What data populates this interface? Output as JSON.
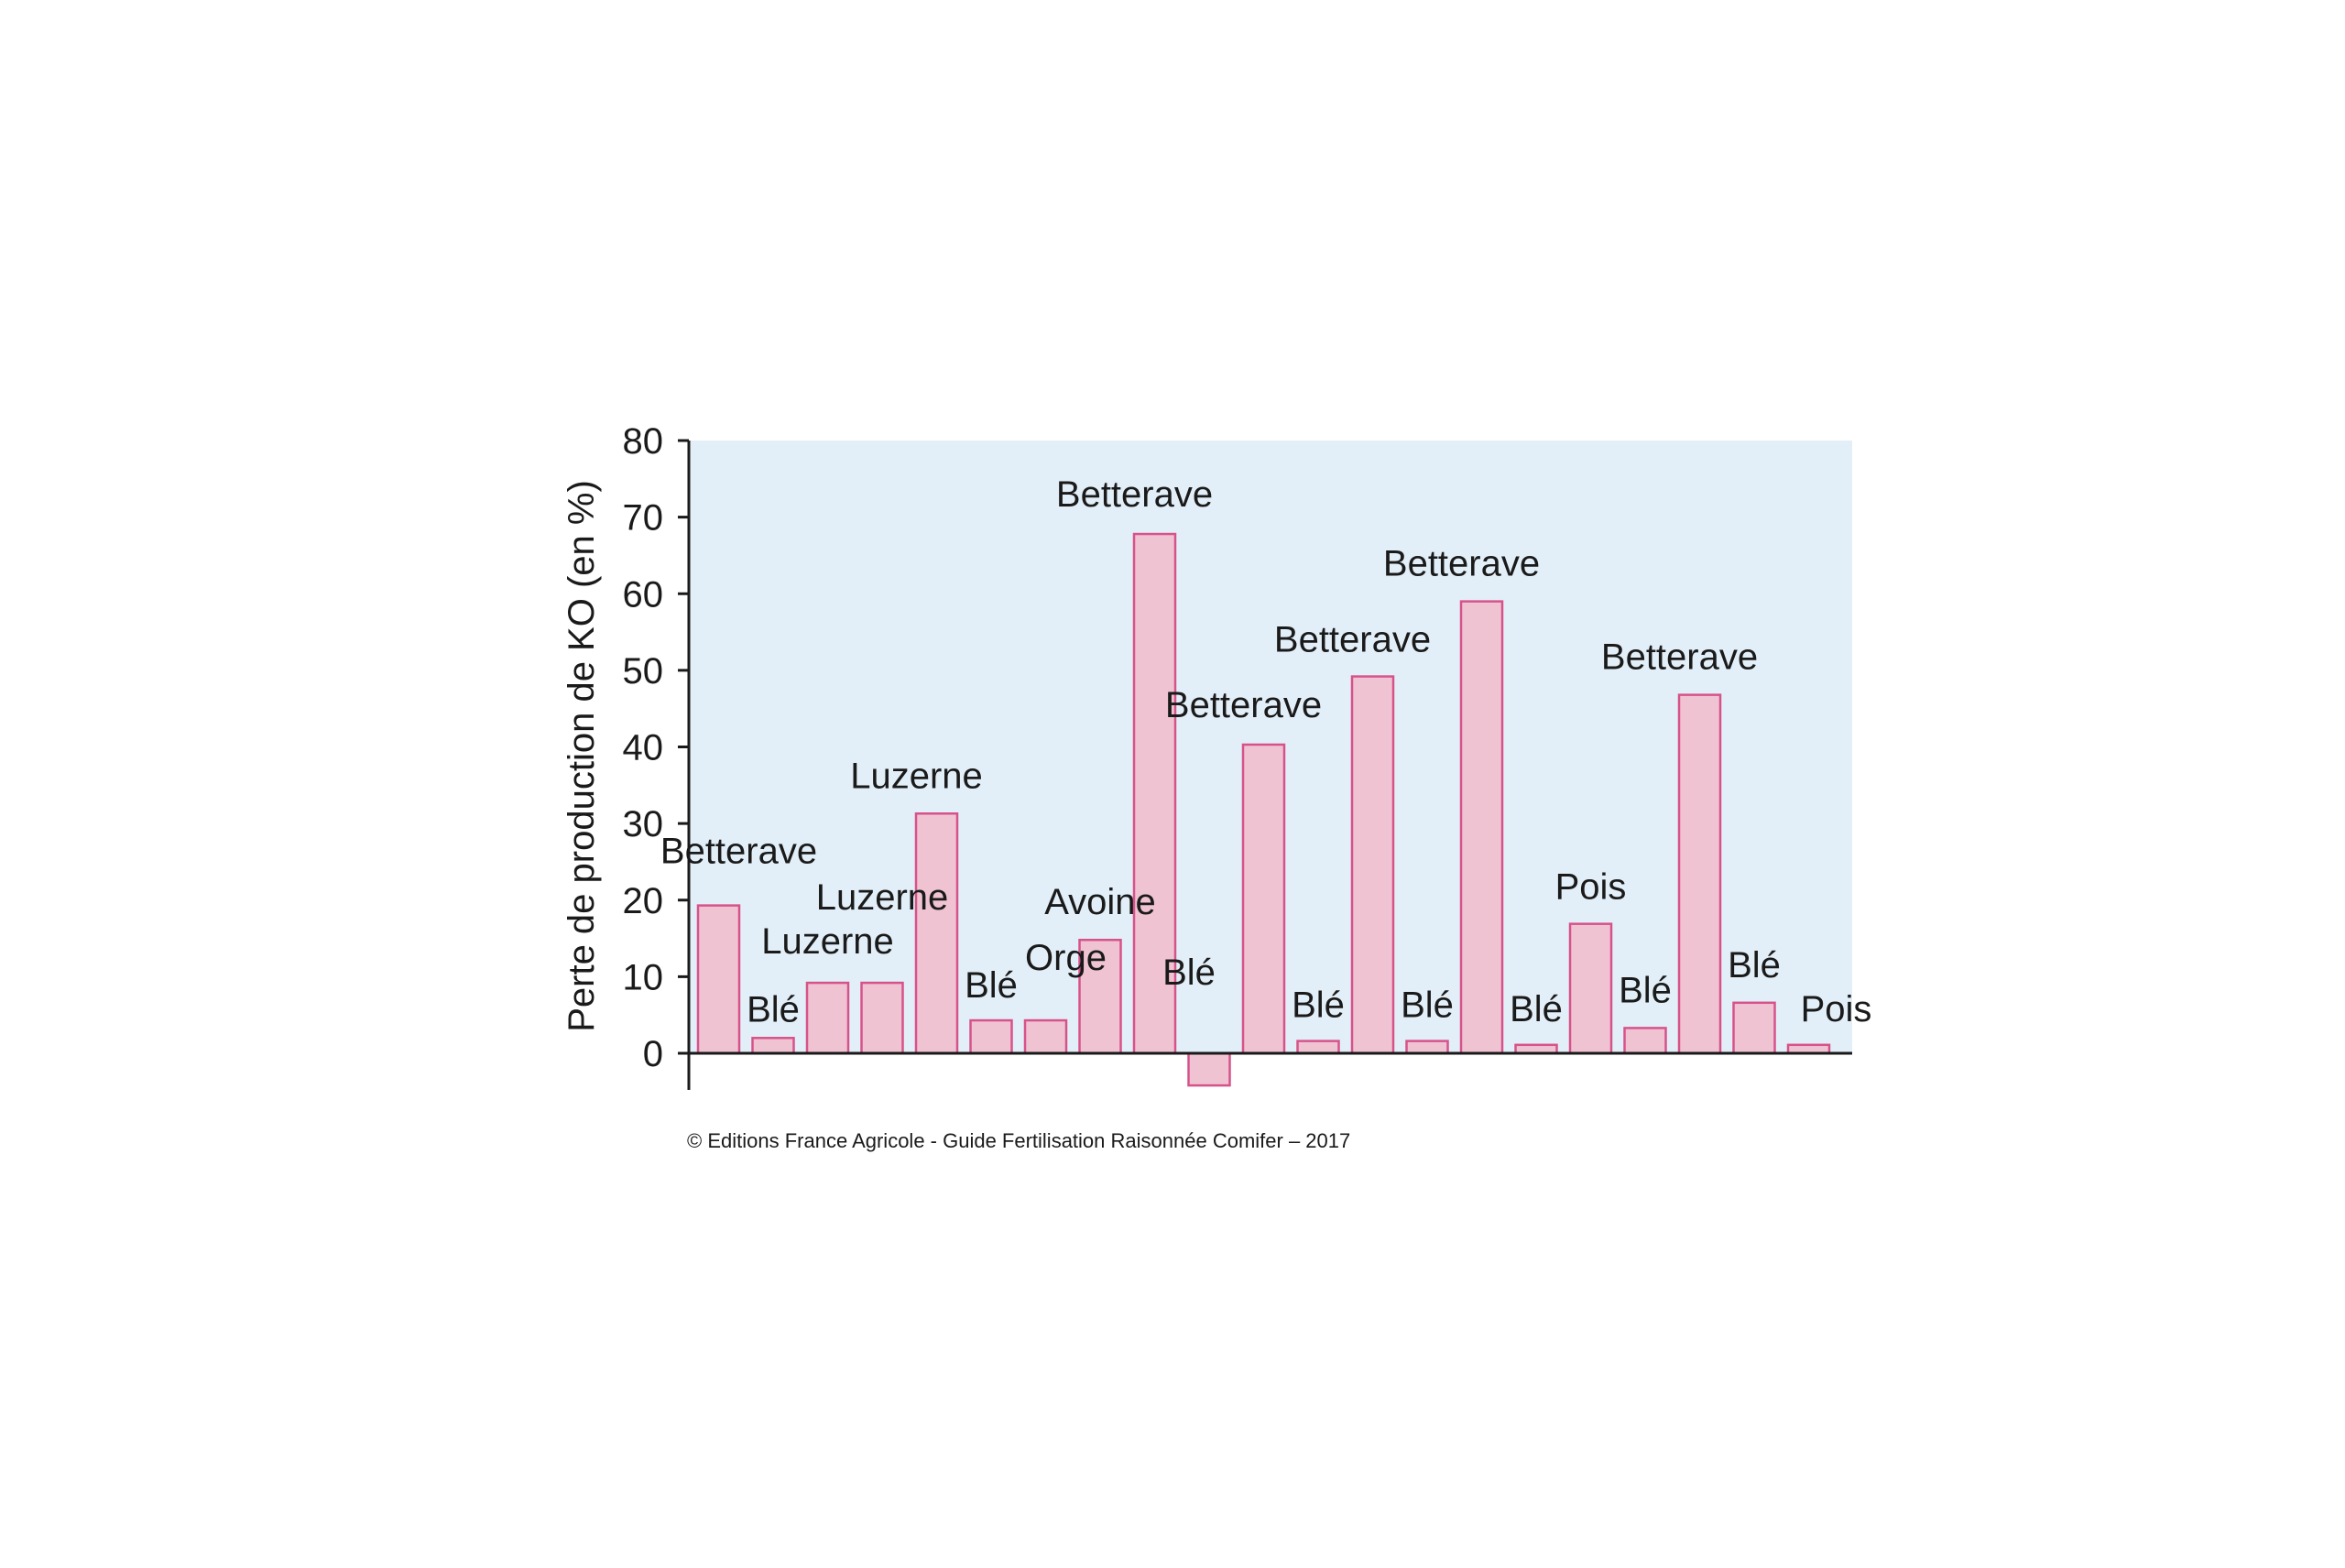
{
  "chart_data": {
    "type": "bar",
    "title": "",
    "xlabel": "",
    "ylabel": "Perte de production de KO (en %)",
    "ylim": [
      -5,
      80
    ],
    "yticks": [
      0,
      10,
      20,
      30,
      40,
      50,
      60,
      70,
      80
    ],
    "grid": false,
    "legend": "none",
    "colors": {
      "plot_background": "#e3eff8",
      "bar_fill": "#f0c3d3",
      "bar_stroke": "#d6538a",
      "axis": "#1a1a1a"
    },
    "bars": [
      {
        "label": "Betterave",
        "value": 19.3
      },
      {
        "label": "Blé",
        "value": 2
      },
      {
        "label": "Luzerne",
        "value": 9.2
      },
      {
        "label": "Luzerne",
        "value": 9.2
      },
      {
        "label": "Luzerne",
        "value": 31.3
      },
      {
        "label": "Blé",
        "value": 4.3
      },
      {
        "label": "Orge",
        "value": 4.3
      },
      {
        "label": "Avoine",
        "value": 14.8
      },
      {
        "label": "Betterave",
        "value": 67.8
      },
      {
        "label": "Blé",
        "value": -4.2
      },
      {
        "label": "Betterave",
        "value": 40.3
      },
      {
        "label": "Blé",
        "value": 1.6
      },
      {
        "label": "Betterave",
        "value": 49.2
      },
      {
        "label": "Blé",
        "value": 1.6
      },
      {
        "label": "Betterave",
        "value": 59
      },
      {
        "label": "Blé",
        "value": 1.1
      },
      {
        "label": "Pois",
        "value": 16.9
      },
      {
        "label": "Blé",
        "value": 3.3
      },
      {
        "label": "Betterave",
        "value": 46.8
      },
      {
        "label": "Blé",
        "value": 6.6
      },
      {
        "label": "Pois",
        "value": 1.1
      }
    ]
  },
  "credit": "© Editions France Agricole - Guide Fertilisation Raisonnée Comifer – 2017"
}
